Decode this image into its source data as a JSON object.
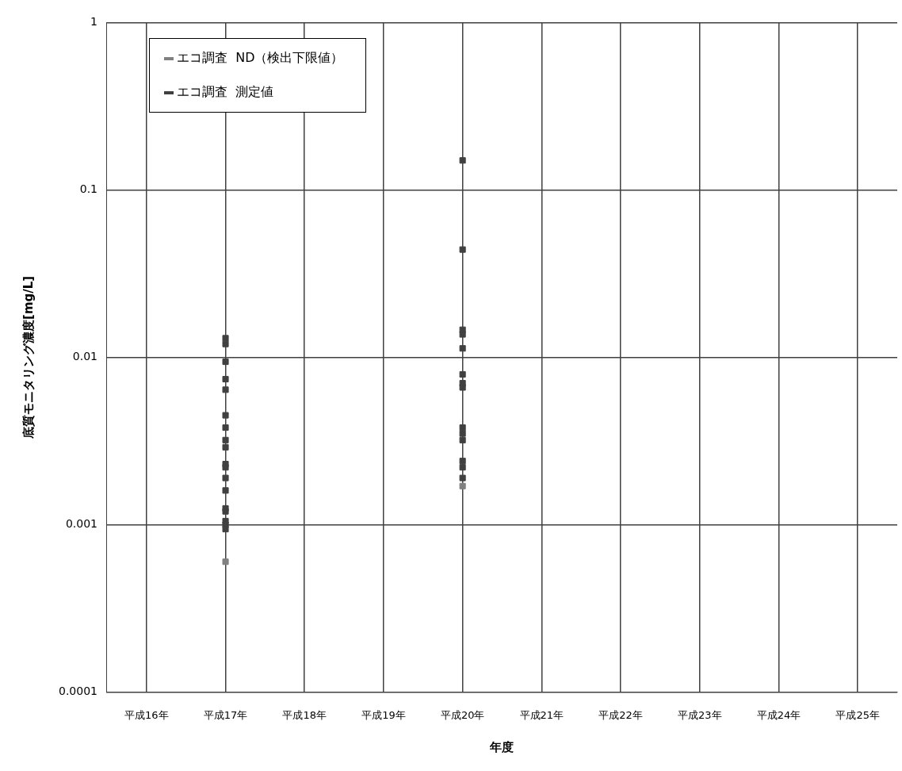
{
  "chart_data": {
    "type": "scatter",
    "xlabel": "年度",
    "ylabel": "底質モニタリング濃度[mg/L]",
    "categories": [
      "平成16年",
      "平成17年",
      "平成18年",
      "平成19年",
      "平成20年",
      "平成21年",
      "平成22年",
      "平成23年",
      "平成24年",
      "平成25年"
    ],
    "series": [
      {
        "name": "エコ調査  ND（検出下限値）",
        "color": "#808080",
        "x": [
          "平成17年",
          "平成20年"
        ],
        "values": [
          0.0006,
          0.0017
        ]
      },
      {
        "name": "エコ調査  測定値",
        "color": "#404040",
        "x": [
          "平成17年",
          "平成17年",
          "平成17年",
          "平成17年",
          "平成17年",
          "平成17年",
          "平成17年",
          "平成17年",
          "平成17年",
          "平成17年",
          "平成17年",
          "平成17年",
          "平成17年",
          "平成17年",
          "平成17年",
          "平成17年",
          "平成17年",
          "平成17年",
          "平成20年",
          "平成20年",
          "平成20年",
          "平成20年",
          "平成20年",
          "平成20年",
          "平成20年",
          "平成20年",
          "平成20年",
          "平成20年",
          "平成20年",
          "平成20年",
          "平成20年",
          "平成20年"
        ],
        "values": [
          0.013,
          0.012,
          0.0094,
          0.0074,
          0.0064,
          0.0045,
          0.0038,
          0.0032,
          0.0029,
          0.0023,
          0.0022,
          0.0019,
          0.0016,
          0.00125,
          0.0012,
          0.00105,
          0.001,
          0.00094,
          0.15,
          0.044,
          0.0146,
          0.0137,
          0.0113,
          0.0079,
          0.007,
          0.0066,
          0.0038,
          0.0035,
          0.0032,
          0.0024,
          0.0022,
          0.0019
        ]
      }
    ],
    "log": "y",
    "ylim": [
      0.0001,
      1
    ],
    "yticks": [
      0.0001,
      0.001,
      0.01,
      0.1,
      1
    ],
    "grid": true,
    "legend": "top left",
    "marker": "square"
  }
}
